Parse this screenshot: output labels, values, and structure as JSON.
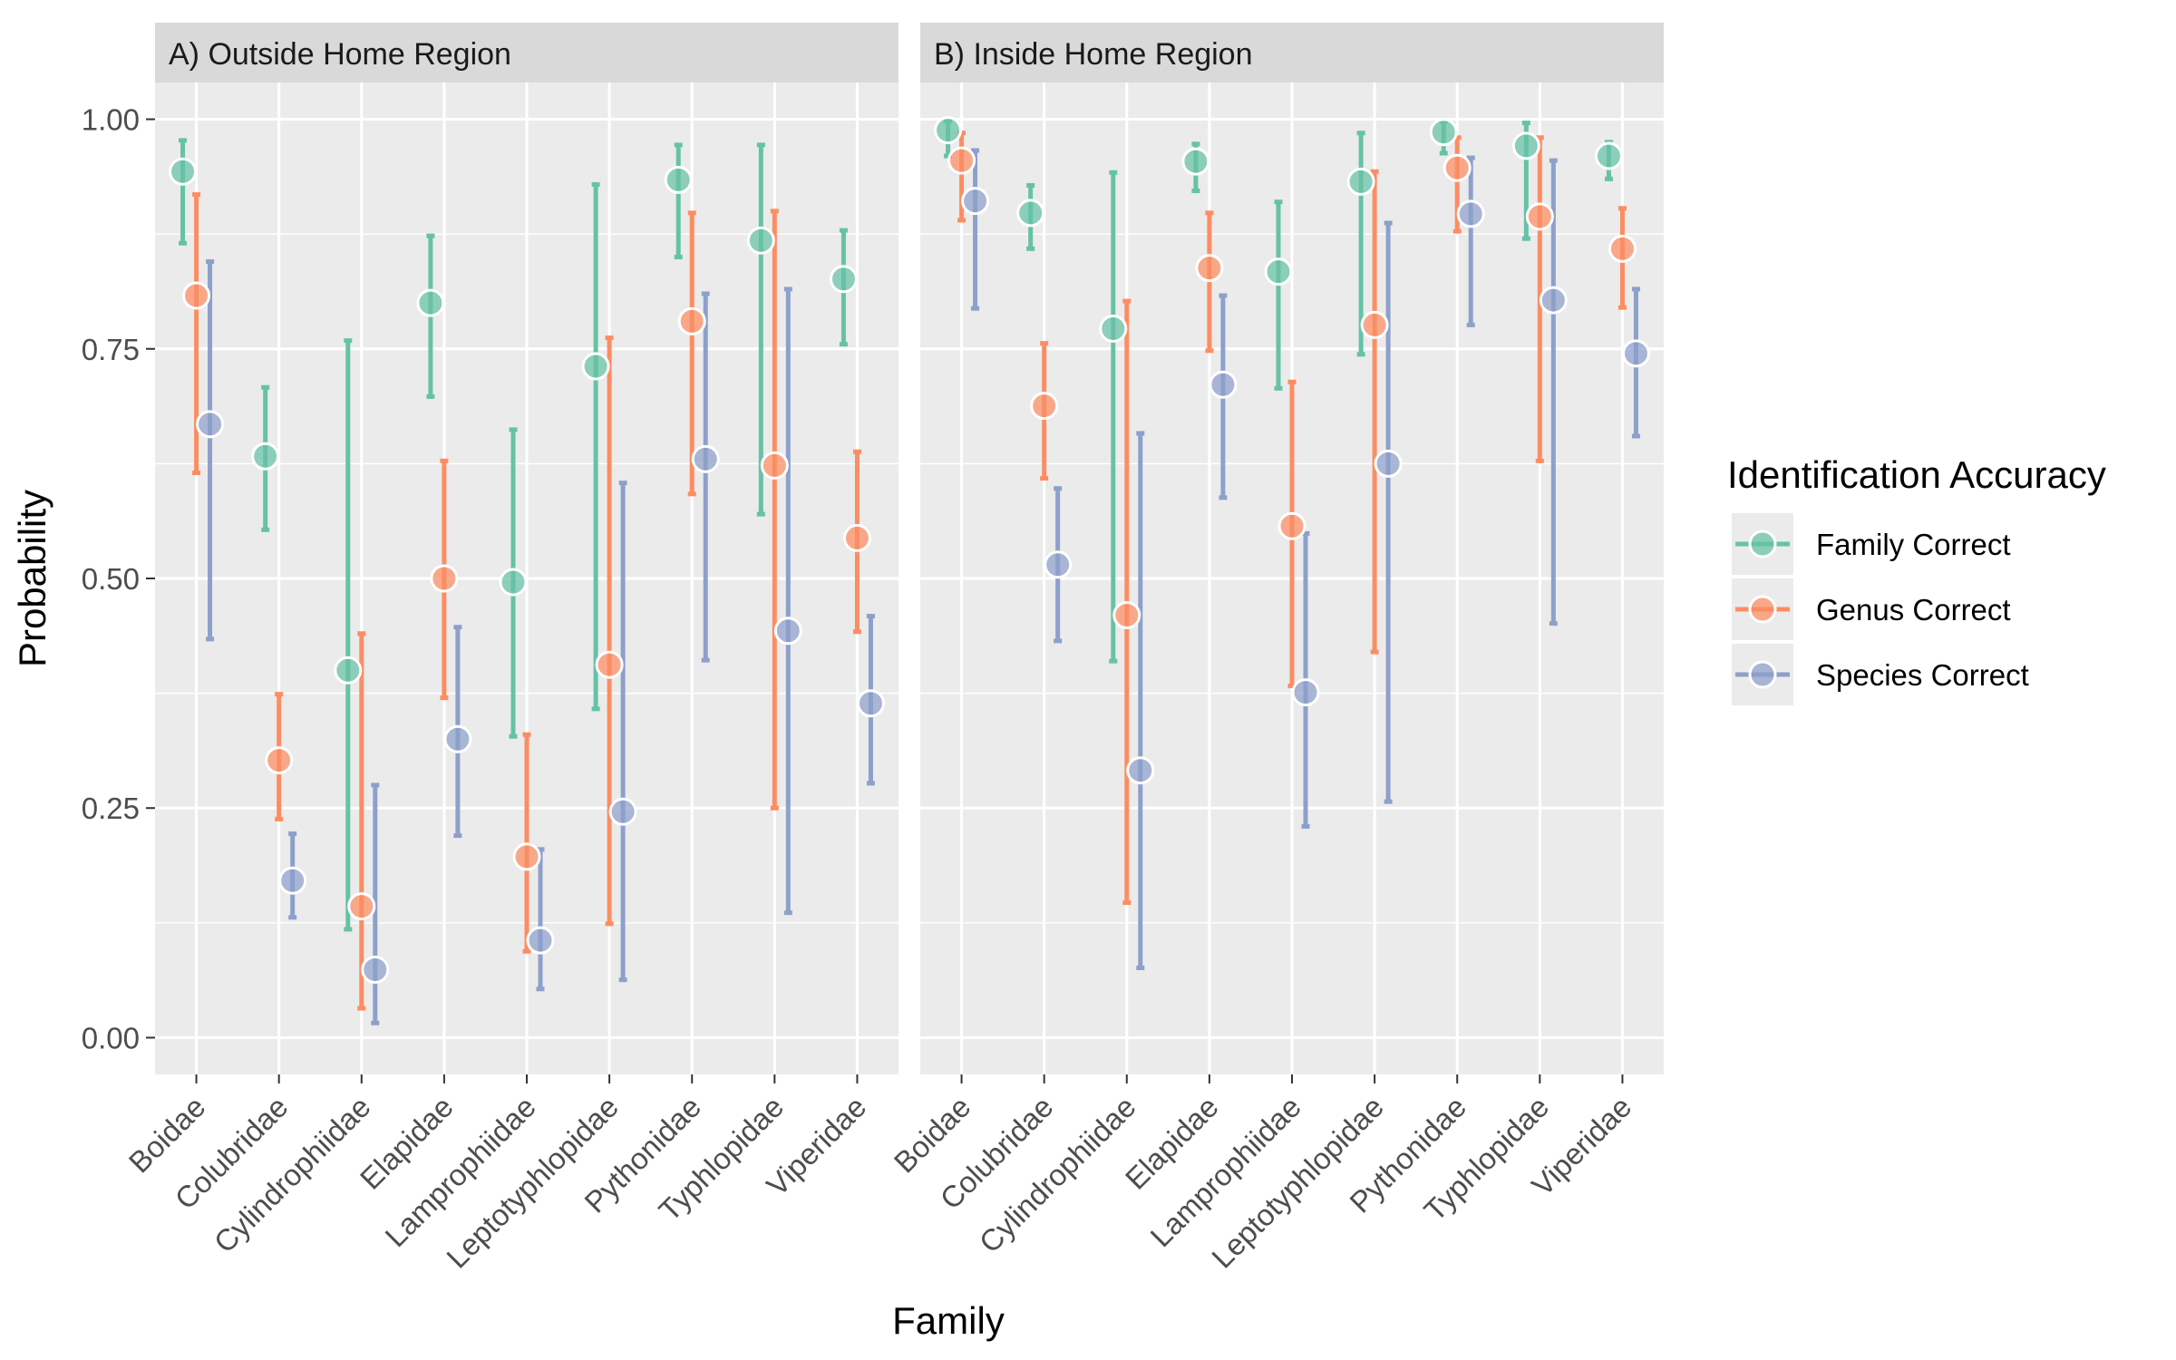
{
  "chart_data": {
    "type": "scatter",
    "subtype": "point-range (dot with error bars), faceted",
    "xlabel": "Family",
    "ylabel": "Probability",
    "ylim": [
      -0.04,
      1.04
    ],
    "yticks": [
      "0.00",
      "0.25",
      "0.50",
      "0.75",
      "1.00"
    ],
    "ytick_values": [
      0,
      0.25,
      0.5,
      0.75,
      1
    ],
    "grid": true,
    "legend": {
      "title": "Identification Accuracy",
      "placement": "right",
      "items": [
        "Family Correct",
        "Genus Correct",
        "Species Correct"
      ]
    },
    "colors": {
      "Family Correct": "#66c2a5",
      "Genus Correct": "#fc8d62",
      "Species Correct": "#8da0cb"
    },
    "categories": [
      "Boidae",
      "Colubridae",
      "Cylindrophiidae",
      "Elapidae",
      "Lamprophiidae",
      "Leptotyphlopidae",
      "Pythonidae",
      "Typhlopidae",
      "Viperidae"
    ],
    "panels": [
      {
        "title": "A)   Outside Home Region",
        "series": [
          {
            "name": "Family Correct",
            "values": [
              0.943,
              0.633,
              0.4,
              0.8,
              0.496,
              0.731,
              0.934,
              0.868,
              0.826
            ],
            "lower": [
              0.865,
              0.553,
              0.118,
              0.698,
              0.328,
              0.358,
              0.85,
              0.57,
              0.755
            ],
            "upper": [
              0.977,
              0.708,
              0.759,
              0.873,
              0.662,
              0.929,
              0.972,
              0.972,
              0.879
            ]
          },
          {
            "name": "Genus Correct",
            "values": [
              0.808,
              0.302,
              0.143,
              0.5,
              0.197,
              0.406,
              0.78,
              0.623,
              0.544
            ],
            "lower": [
              0.615,
              0.238,
              0.032,
              0.37,
              0.094,
              0.124,
              0.592,
              0.25,
              0.442
            ],
            "upper": [
              0.918,
              0.374,
              0.44,
              0.628,
              0.33,
              0.762,
              0.898,
              0.9,
              0.638
            ]
          },
          {
            "name": "Species Correct",
            "values": [
              0.668,
              0.171,
              0.074,
              0.325,
              0.106,
              0.246,
              0.63,
              0.443,
              0.364
            ],
            "lower": [
              0.434,
              0.131,
              0.016,
              0.22,
              0.053,
              0.063,
              0.411,
              0.136,
              0.277
            ],
            "upper": [
              0.845,
              0.222,
              0.275,
              0.447,
              0.205,
              0.604,
              0.81,
              0.815,
              0.459
            ]
          }
        ]
      },
      {
        "title": "B)   Inside Home Region",
        "series": [
          {
            "name": "Family Correct",
            "values": [
              0.988,
              0.898,
              0.772,
              0.954,
              0.834,
              0.932,
              0.986,
              0.971,
              0.96
            ],
            "lower": [
              0.96,
              0.859,
              0.41,
              0.922,
              0.707,
              0.744,
              0.963,
              0.87,
              0.935
            ],
            "upper": [
              0.998,
              0.928,
              0.942,
              0.973,
              0.91,
              0.985,
              0.998,
              0.996,
              0.975
            ]
          },
          {
            "name": "Genus Correct",
            "values": [
              0.955,
              0.688,
              0.46,
              0.838,
              0.557,
              0.776,
              0.947,
              0.894,
              0.859
            ],
            "lower": [
              0.89,
              0.609,
              0.147,
              0.748,
              0.383,
              0.42,
              0.878,
              0.628,
              0.795
            ],
            "upper": [
              0.985,
              0.756,
              0.802,
              0.898,
              0.714,
              0.943,
              0.98,
              0.98,
              0.903
            ]
          },
          {
            "name": "Species Correct",
            "values": [
              0.911,
              0.515,
              0.291,
              0.711,
              0.376,
              0.625,
              0.897,
              0.803,
              0.745
            ],
            "lower": [
              0.794,
              0.432,
              0.076,
              0.588,
              0.23,
              0.257,
              0.776,
              0.451,
              0.655
            ],
            "upper": [
              0.966,
              0.598,
              0.658,
              0.808,
              0.549,
              0.887,
              0.958,
              0.955,
              0.815
            ]
          }
        ]
      }
    ]
  }
}
